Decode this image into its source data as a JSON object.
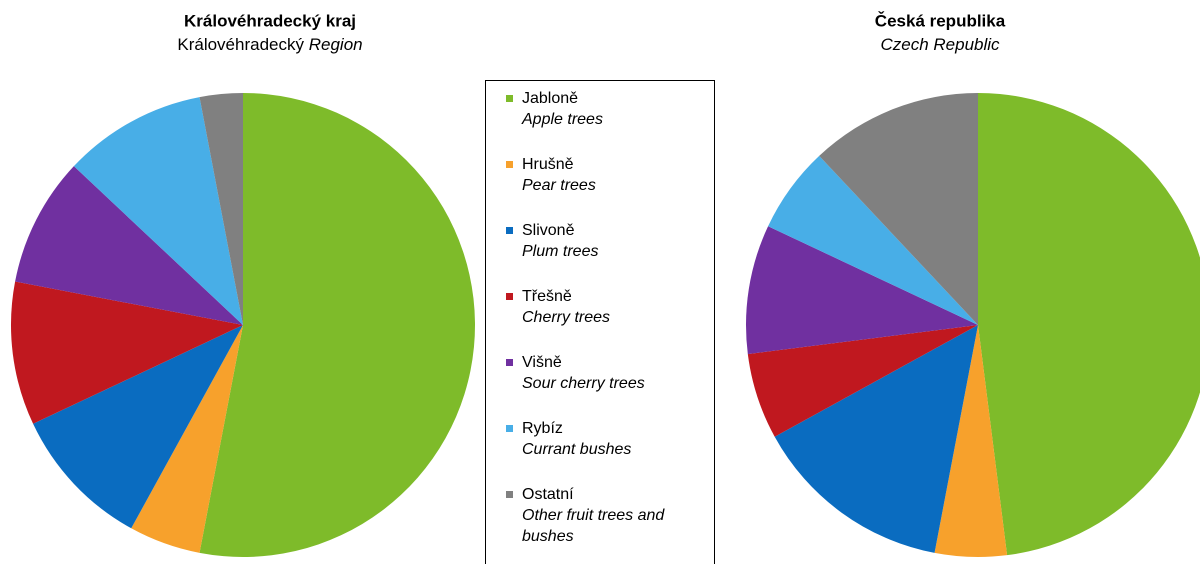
{
  "chart_data": [
    {
      "type": "pie",
      "title": "Královéhradecký kraj",
      "subtitle": [
        "Královéhradecký",
        "Region"
      ],
      "values": [
        53,
        5,
        10,
        10,
        9,
        10,
        3
      ]
    },
    {
      "type": "pie",
      "title": "Česká republika",
      "subtitle": [
        "Czech Republic"
      ],
      "values": [
        48,
        5,
        14,
        6,
        9,
        6,
        12
      ]
    }
  ],
  "legend": {
    "items": [
      {
        "label": "Jabloně",
        "sublabel": "Apple trees",
        "color": "#7ebb2a"
      },
      {
        "label": "Hrušně",
        "sublabel": "Pear trees",
        "color": "#f7a12c"
      },
      {
        "label": "Slivoně",
        "sublabel": "Plum trees",
        "color": "#0a6cc0"
      },
      {
        "label": "Třešně",
        "sublabel": "Cherry trees",
        "color": "#c0181f"
      },
      {
        "label": "Višně",
        "sublabel": "Sour cherry trees",
        "color": "#7030a0"
      },
      {
        "label": "Rybíz",
        "sublabel": "Currant bushes",
        "color": "#48aee7"
      },
      {
        "label": "Ostatní",
        "sublabel": "Other fruit trees and bushes",
        "color": "#808080"
      }
    ]
  }
}
